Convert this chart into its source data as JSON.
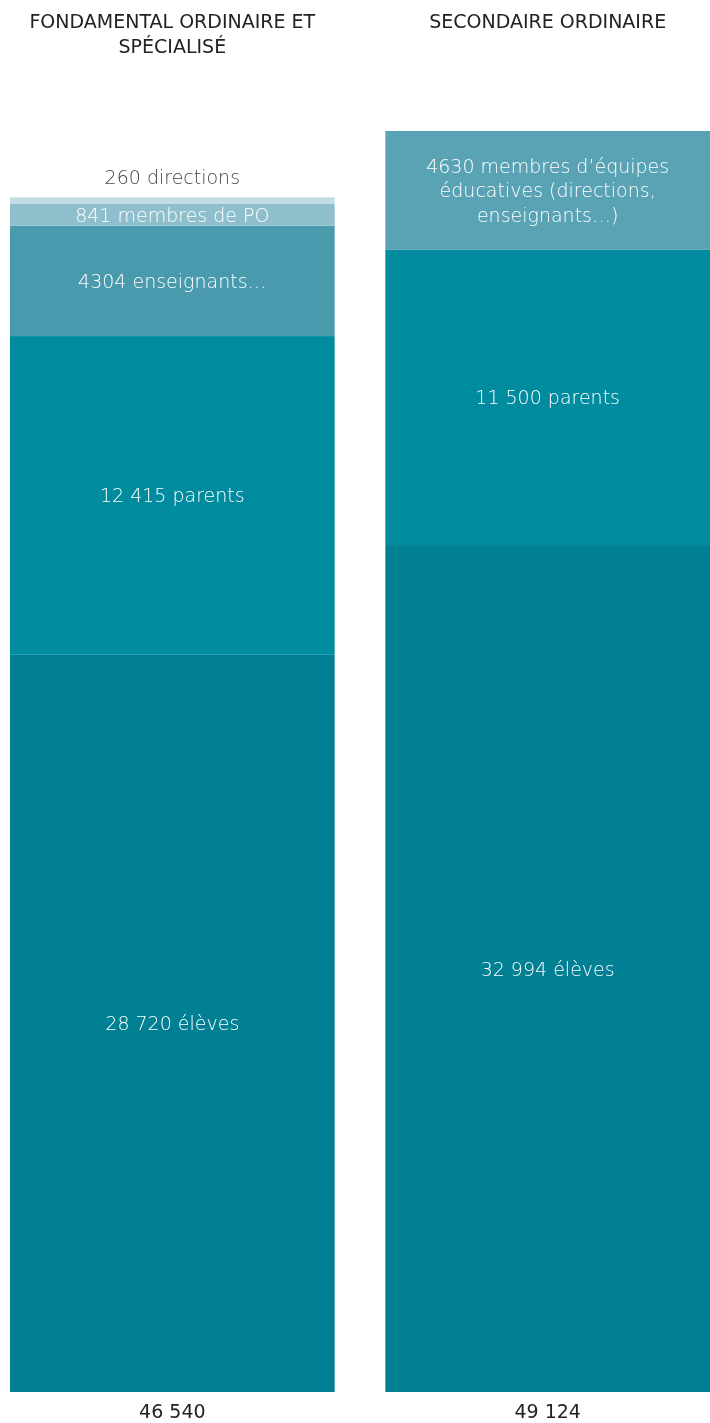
{
  "chart_data": {
    "type": "bar",
    "stacked": true,
    "categories": [
      "FONDAMENTAL ORDINAIRE ET SPÉCIALISÉ",
      "SECONDAIRE ORDINAIRE"
    ],
    "series": [
      {
        "colors": [
          "#017f93",
          "#017f93"
        ],
        "values": [
          28720,
          32994
        ],
        "value_labels": [
          "28 720 élèves",
          "32 994 élèves"
        ]
      },
      {
        "colors": [
          "#008b9e",
          "#008b9e"
        ],
        "values": [
          12415,
          11500
        ],
        "value_labels": [
          "12 415 parents",
          "11 500 parents"
        ]
      },
      {
        "colors": [
          "#4a9aae",
          "#5aa3b5"
        ],
        "values": [
          4304,
          4630
        ],
        "value_labels": [
          "4304 enseignants…",
          "4630 membres d’équipes éducatives (directions, enseignants…)"
        ]
      },
      {
        "colors": [
          "#8fbfcc",
          null
        ],
        "values": [
          841,
          null
        ],
        "value_labels": [
          "841 membres de PO",
          null
        ]
      },
      {
        "colors": [
          "#c3dde5",
          null
        ],
        "values": [
          260,
          null
        ],
        "value_labels": [
          "260 directions",
          null
        ]
      }
    ],
    "totals": [
      "46 540",
      "49 124"
    ]
  }
}
